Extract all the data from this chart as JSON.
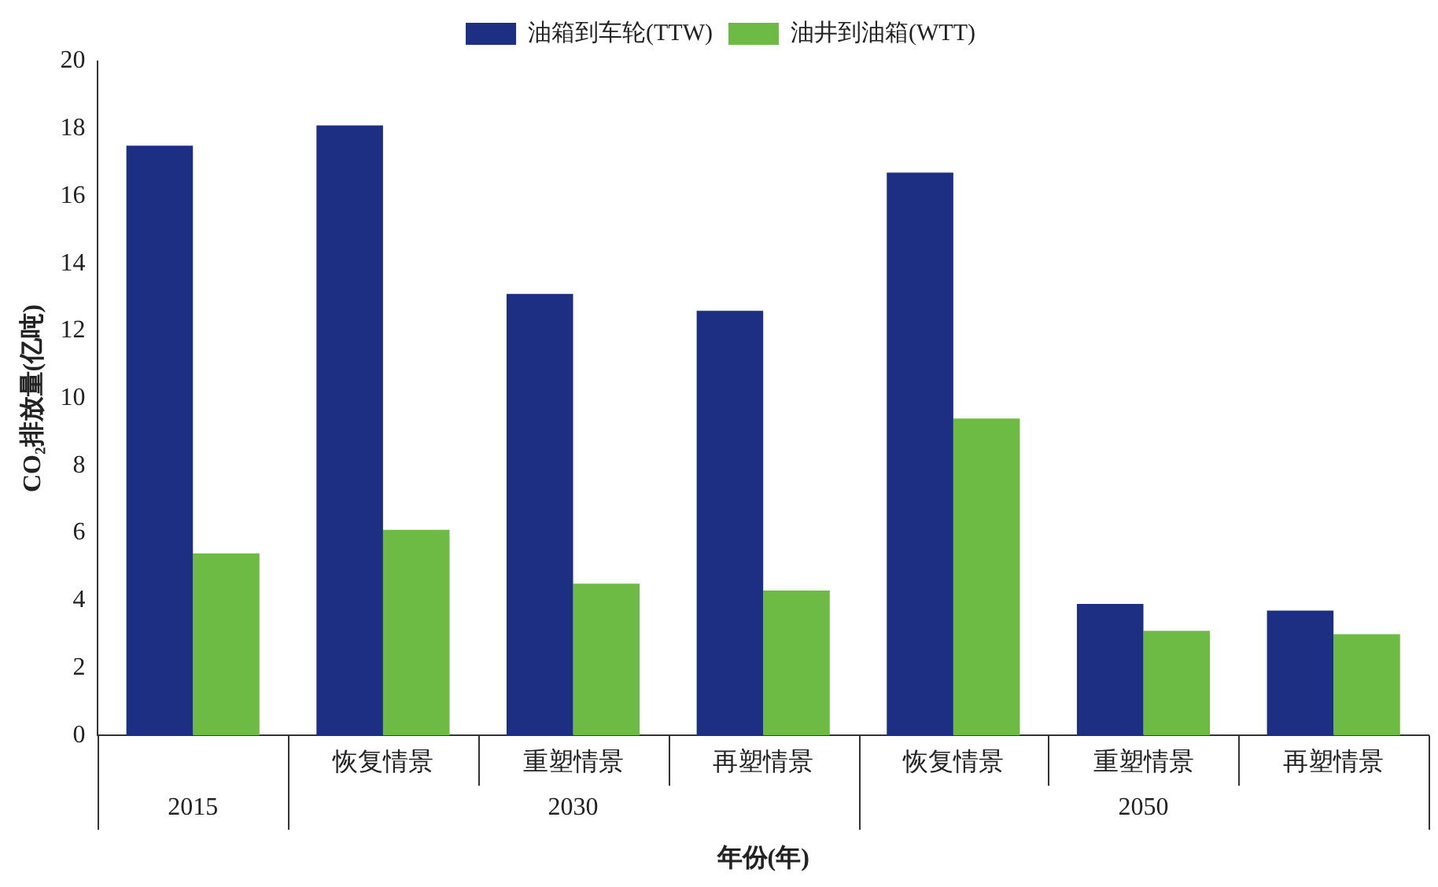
{
  "chart_data": {
    "type": "bar",
    "ylabel": "CO₂排放量(亿吨)",
    "xlabel": "年份(年)",
    "categories": [
      null,
      "恢复情景",
      "重塑情景",
      "再塑情景",
      "恢复情景",
      "重塑情景",
      "再塑情景"
    ],
    "series": [
      {
        "name": "油箱到车轮(TTW)",
        "color": "#1c2f82",
        "values": [
          17.5,
          18.1,
          13.1,
          12.6,
          16.7,
          3.9,
          3.7
        ]
      },
      {
        "name": "油井到油箱(WTT)",
        "color": "#6dbb45",
        "values": [
          5.4,
          6.1,
          4.5,
          4.3,
          9.4,
          3.1,
          3.0
        ]
      }
    ],
    "ylim": [
      0,
      20
    ],
    "yticks": [
      0,
      2,
      4,
      6,
      8,
      10,
      12,
      14,
      16,
      18,
      20
    ],
    "grid": false,
    "legend": "top",
    "annotations": [
      "2015",
      "2030",
      "2050"
    ]
  }
}
